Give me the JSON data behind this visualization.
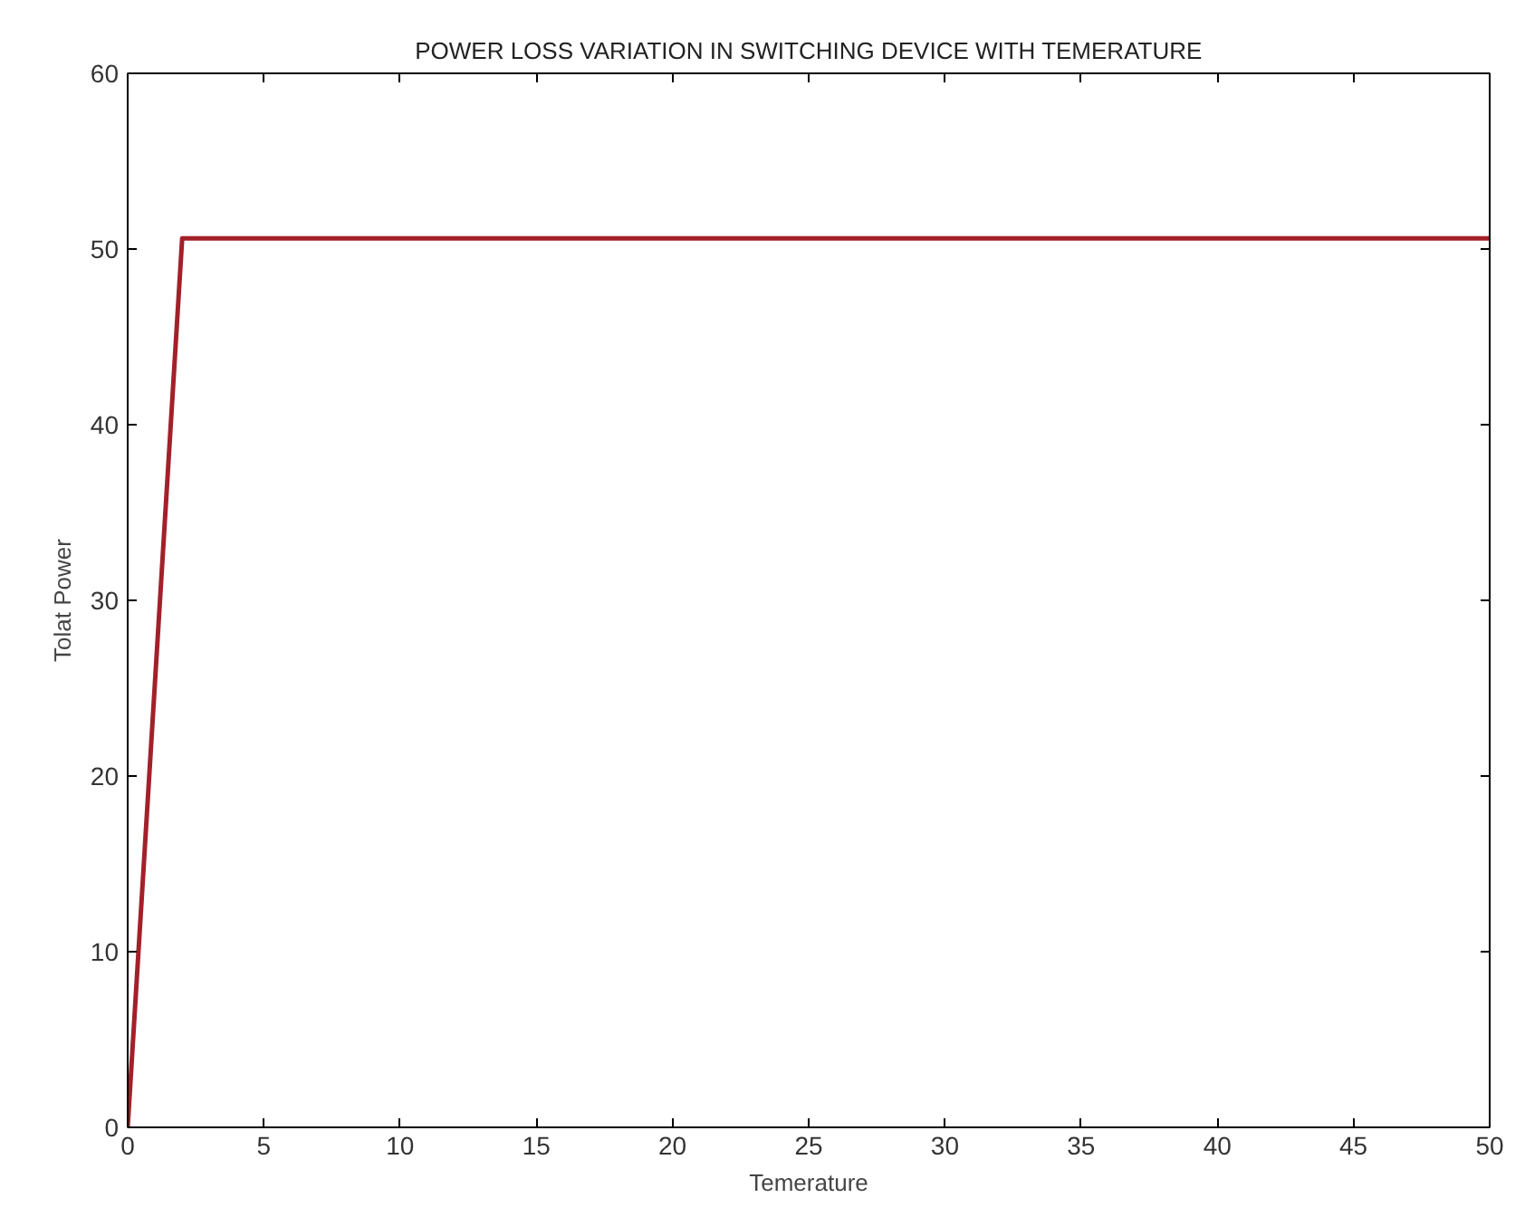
{
  "chart_data": {
    "type": "line",
    "title": "POWER LOSS VARIATION IN SWITCHING DEVICE WITH TEMERATURE",
    "xlabel": "Temerature",
    "ylabel": "Tolat Power",
    "x": [
      0,
      2,
      50
    ],
    "series": [
      {
        "color": "#a3202a",
        "values": [
          0,
          50.6,
          50.6
        ]
      }
    ],
    "xlim": [
      0,
      50
    ],
    "ylim": [
      0,
      60
    ],
    "xticks": [
      0,
      5,
      10,
      15,
      20,
      25,
      30,
      35,
      40,
      45,
      50
    ],
    "yticks": [
      0,
      10,
      20,
      30,
      40,
      50,
      60
    ],
    "grid": false,
    "marker": "none",
    "line_style": "solid"
  }
}
